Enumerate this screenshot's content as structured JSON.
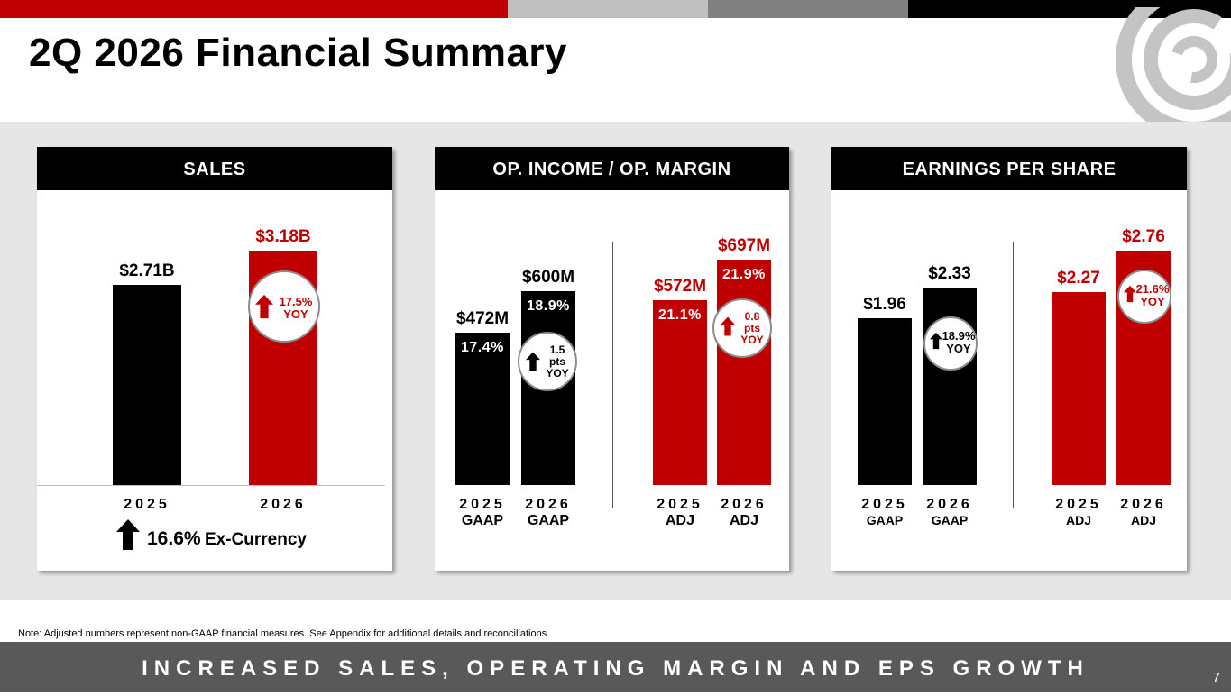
{
  "colors": {
    "red": "#c00000",
    "black": "#000000",
    "grey_light": "#bfbfbf",
    "grey_dark": "#808080",
    "band": "#e6e6e6",
    "footer": "#595959"
  },
  "page": {
    "title": "2Q 2026 Financial Summary",
    "note": "Note: Adjusted numbers represent non-GAAP financial measures.  See Appendix for additional details and reconciliations",
    "footer": "INCREASED SALES, OPERATING MARGIN AND EPS GROWTH",
    "page_number": "7"
  },
  "chart_data": [
    {
      "type": "bar",
      "title": "SALES",
      "categories": [
        "2025",
        "2026"
      ],
      "values": [
        2.71,
        3.18
      ],
      "unit": "$B",
      "value_labels": [
        "$2.71B",
        "$3.18B"
      ],
      "bar_colors": [
        "black",
        "red"
      ],
      "badge": {
        "text": "17.5%\nYOY",
        "arrow": "up",
        "color": "red"
      },
      "footnote": {
        "pct": "16.6%",
        "text": "Ex-Currency"
      },
      "ylim": [
        0,
        3.5
      ]
    },
    {
      "type": "bar",
      "title": "OP. INCOME / OP. MARGIN",
      "categories": [
        [
          "2025",
          "GAAP"
        ],
        [
          "2026",
          "GAAP"
        ],
        [
          "2025",
          "ADJ"
        ],
        [
          "2026",
          "ADJ"
        ]
      ],
      "values": [
        472,
        600,
        572,
        697
      ],
      "unit": "$M",
      "value_labels": [
        "$472M",
        "$600M",
        "$572M",
        "$697M"
      ],
      "margins": [
        "17.4%",
        "18.9%",
        "21.1%",
        "21.9%"
      ],
      "bar_colors": [
        "black",
        "black",
        "red",
        "red"
      ],
      "badges": [
        {
          "text": "1.5\npts\nYOY",
          "arrow": "up",
          "color": "black"
        },
        {
          "text": "0.8\npts\nYOY",
          "arrow": "up",
          "color": "red"
        }
      ],
      "ylim": [
        0,
        850
      ]
    },
    {
      "type": "bar",
      "title": "EARNINGS PER SHARE",
      "categories": [
        [
          "2025",
          "GAAP"
        ],
        [
          "2026",
          "GAAP"
        ],
        [
          "2025",
          "ADJ"
        ],
        [
          "2026",
          "ADJ"
        ]
      ],
      "values": [
        1.96,
        2.33,
        2.27,
        2.76
      ],
      "unit": "$",
      "value_labels": [
        "$1.96",
        "$2.33",
        "$2.27",
        "$2.76"
      ],
      "bar_colors": [
        "black",
        "black",
        "red",
        "red"
      ],
      "badges": [
        {
          "text": "18.9%\nYOY",
          "arrow": "up",
          "color": "black"
        },
        {
          "text": "21.6%\nYOY",
          "arrow": "up",
          "color": "red"
        }
      ],
      "ylim": [
        0,
        3.0
      ]
    }
  ]
}
